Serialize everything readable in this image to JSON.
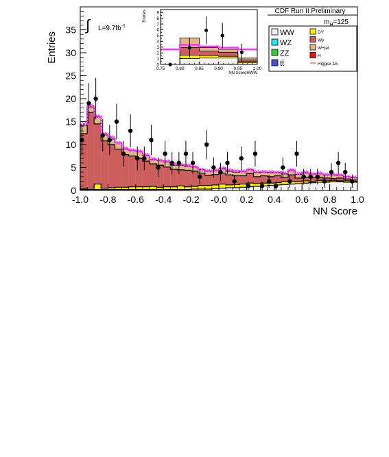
{
  "header": {
    "title": "CDF Run II Preliminary",
    "lumi_prefix": "L=9.7fb",
    "lumi_sup": "-1",
    "mass_label": "m",
    "mass_sub": "H",
    "mass_value": "=125"
  },
  "legend": {
    "items": [
      {
        "label": "WW",
        "color": "#f4f4f4"
      },
      {
        "label": "WZ",
        "color": "#22e8ee"
      },
      {
        "label": "ZZ",
        "color": "#33cc33"
      },
      {
        "label": "tt̄",
        "color": "#4a4ad8"
      },
      {
        "label": "DY",
        "color": "#ffee00"
      },
      {
        "label": "Wγ",
        "color": "#cc5e5e"
      },
      {
        "label": "W+jet",
        "color": "#dfb888"
      },
      {
        "label": "H",
        "color": "#ee1111"
      },
      {
        "label": "Higgsx 15",
        "color": "#ff3333"
      }
    ]
  },
  "colors": {
    "ww": "#f4f4f4",
    "wz": "#22e8ee",
    "zz": "#33cc33",
    "tt": "#4a4ad8",
    "dy": "#ffee00",
    "wgamma": "#cc5e5e",
    "wjet": "#dfb888",
    "higgs": "#ee1111",
    "signal_line": "#ff3333",
    "band": "#ff33ff"
  },
  "chart_data": [
    {
      "type": "bar",
      "title": "",
      "xlabel": "NN Score",
      "ylabel": "Entries",
      "xlim": [
        -1.0,
        1.0
      ],
      "ylim": [
        0,
        40
      ],
      "xticks": [
        -1.0,
        -0.8,
        -0.6,
        -0.4,
        -0.2,
        0.0,
        0.2,
        0.4,
        0.6,
        0.8,
        1.0
      ],
      "xtick_labels": [
        "-1.0",
        "-0.8",
        "-0.6",
        "-0.4",
        "-0.2",
        "-0.0",
        "0.2",
        "0.4",
        "0.6",
        "0.8",
        "1.0"
      ],
      "yticks": [
        0,
        5,
        10,
        15,
        20,
        25,
        30,
        35
      ],
      "bin_edges": [
        -1.0,
        -0.95,
        -0.9,
        -0.85,
        -0.8,
        -0.75,
        -0.7,
        -0.65,
        -0.6,
        -0.55,
        -0.5,
        -0.45,
        -0.4,
        -0.35,
        -0.3,
        -0.25,
        -0.2,
        -0.15,
        -0.1,
        -0.05,
        0.0,
        0.05,
        0.1,
        0.15,
        0.2,
        0.25,
        0.3,
        0.35,
        0.4,
        0.45,
        0.5,
        0.55,
        0.6,
        0.65,
        0.7,
        0.75,
        0.8,
        0.85,
        0.9,
        0.95,
        1.0
      ],
      "stack_order": [
        "WW",
        "DY",
        "Wγ",
        "W+jet"
      ],
      "series": [
        {
          "name": "WW",
          "values": [
            0.2,
            0.2,
            0.2,
            0.2,
            0.2,
            0.2,
            0.2,
            0.2,
            0.2,
            0.2,
            0.2,
            0.2,
            0.2,
            0.2,
            0.2,
            0.2,
            0.3,
            0.3,
            0.3,
            0.4,
            0.5,
            0.6,
            0.6,
            0.7,
            0.8,
            0.9,
            1.0,
            1.1,
            1.2,
            1.3,
            1.4,
            1.5,
            1.6,
            1.7,
            1.8,
            1.8,
            1.9,
            1.9,
            1.8,
            1.8
          ]
        },
        {
          "name": "DY",
          "values": [
            0.2,
            0.3,
            1.2,
            0.3,
            0.4,
            0.5,
            0.5,
            0.6,
            0.6,
            0.6,
            0.7,
            0.5,
            0.6,
            0.6,
            0.8,
            0.6,
            0.6,
            0.8,
            0.8,
            0.8,
            0.9,
            0.6,
            0.7,
            0.7,
            0.8,
            0.6,
            0.6,
            0.5,
            0.5,
            0.6,
            0.6,
            0.4,
            0.5,
            0.3,
            0.4,
            0.3,
            0.3,
            0.2,
            0.3,
            0.2
          ]
        },
        {
          "name": "Wγ",
          "values": [
            12.0,
            16.5,
            13.1,
            10.3,
            9.4,
            8.3,
            7.1,
            6.7,
            6.2,
            5.6,
            4.9,
            4.8,
            4.3,
            3.8,
            3.5,
            3.6,
            3.3,
            2.7,
            2.2,
            2.3,
            2.4,
            2.2,
            1.9,
            1.8,
            2.1,
            1.5,
            1.6,
            1.4,
            1.5,
            0.9,
            1.4,
            0.8,
            0.7,
            0.8,
            0.6,
            0.6,
            0.4,
            0.6,
            0.4,
            0.3
          ]
        },
        {
          "name": "W+jet",
          "values": [
            1.8,
            1.2,
            1.5,
            1.3,
            1.2,
            1.4,
            1.2,
            1.2,
            1.5,
            1.2,
            0.9,
            1.0,
            1.1,
            0.9,
            1.0,
            0.9,
            0.9,
            0.8,
            0.9,
            0.8,
            0.9,
            0.8,
            0.8,
            0.9,
            0.8,
            0.9,
            0.8,
            0.9,
            0.7,
            0.8,
            0.9,
            0.8,
            1.0,
            0.8,
            0.9,
            0.7,
            0.8,
            0.6,
            0.5,
            0.5
          ]
        }
      ],
      "band_total": [
        14.5,
        18.5,
        16.2,
        12.4,
        11.6,
        10.4,
        9.2,
        8.8,
        8.6,
        7.8,
        6.9,
        6.6,
        6.4,
        5.8,
        5.7,
        5.5,
        5.2,
        4.6,
        4.3,
        4.4,
        4.9,
        4.5,
        4.3,
        4.2,
        4.6,
        4.1,
        4.1,
        4.1,
        4.0,
        3.8,
        4.5,
        3.7,
        4.0,
        3.6,
        3.8,
        3.5,
        3.5,
        3.4,
        3.0,
        2.9
      ],
      "data_points": [
        {
          "x": -0.988,
          "y": 11,
          "err": 3.3
        },
        {
          "x": -0.938,
          "y": 19,
          "err": 4.4
        },
        {
          "x": -0.888,
          "y": 20,
          "err": 4.5
        },
        {
          "x": -0.838,
          "y": 12,
          "err": 3.5
        },
        {
          "x": -0.788,
          "y": 11,
          "err": 3.3
        },
        {
          "x": -0.738,
          "y": 15,
          "err": 3.9
        },
        {
          "x": -0.688,
          "y": 8,
          "err": 2.8
        },
        {
          "x": -0.638,
          "y": 13,
          "err": 3.6
        },
        {
          "x": -0.588,
          "y": 7,
          "err": 2.6
        },
        {
          "x": -0.538,
          "y": 7,
          "err": 2.6
        },
        {
          "x": -0.488,
          "y": 11,
          "err": 3.3
        },
        {
          "x": -0.438,
          "y": 5,
          "err": 2.2
        },
        {
          "x": -0.388,
          "y": 8,
          "err": 2.8
        },
        {
          "x": -0.338,
          "y": 6,
          "err": 2.4
        },
        {
          "x": -0.288,
          "y": 6,
          "err": 2.4
        },
        {
          "x": -0.238,
          "y": 8,
          "err": 2.8
        },
        {
          "x": -0.188,
          "y": 6,
          "err": 2.4
        },
        {
          "x": -0.138,
          "y": 3,
          "err": 1.7
        },
        {
          "x": -0.088,
          "y": 10,
          "err": 3.2
        },
        {
          "x": -0.038,
          "y": 5,
          "err": 2.2
        },
        {
          "x": 0.012,
          "y": 4,
          "err": 2.0
        },
        {
          "x": 0.062,
          "y": 6,
          "err": 2.4
        },
        {
          "x": 0.112,
          "y": 2,
          "err": 1.4
        },
        {
          "x": 0.162,
          "y": 7,
          "err": 2.6
        },
        {
          "x": 0.212,
          "y": 1,
          "err": 1.0
        },
        {
          "x": 0.262,
          "y": 8,
          "err": 2.8
        },
        {
          "x": 0.312,
          "y": 1,
          "err": 1.0
        },
        {
          "x": 0.362,
          "y": 2,
          "err": 1.4
        },
        {
          "x": 0.412,
          "y": 1,
          "err": 1.0
        },
        {
          "x": 0.462,
          "y": 5,
          "err": 2.2
        },
        {
          "x": 0.512,
          "y": 2,
          "err": 1.4
        },
        {
          "x": 0.562,
          "y": 8,
          "err": 2.8
        },
        {
          "x": 0.612,
          "y": 3,
          "err": 1.7
        },
        {
          "x": 0.662,
          "y": 3,
          "err": 1.7
        },
        {
          "x": 0.712,
          "y": 3,
          "err": 1.7
        },
        {
          "x": 0.762,
          "y": 2,
          "err": 1.4
        },
        {
          "x": 0.812,
          "y": 4,
          "err": 2.0
        },
        {
          "x": 0.862,
          "y": 6,
          "err": 2.4
        },
        {
          "x": 0.912,
          "y": 4,
          "err": 2.0
        },
        {
          "x": 0.962,
          "y": 2,
          "err": 1.4
        }
      ]
    },
    {
      "type": "bar",
      "title": "",
      "xlabel": "NN ScoreHWW",
      "ylabel": "Entries",
      "xlim": [
        0.75,
        1.0
      ],
      "ylim": [
        0,
        9.5
      ],
      "xticks": [
        0.75,
        0.8,
        0.85,
        0.9,
        0.95,
        1.0
      ],
      "xtick_labels": [
        "0.75",
        "0.80",
        "0.85",
        "0.90",
        "0.95",
        "1.00"
      ],
      "yticks": [
        0,
        1,
        2,
        3,
        4,
        5,
        6,
        7,
        8,
        9
      ],
      "bin_edges": [
        0.75,
        0.8,
        0.85,
        0.9,
        0.95,
        1.0
      ],
      "stack_order": [
        "WW",
        "DY",
        "Wγ",
        "W+jet"
      ],
      "series": [
        {
          "name": "WW",
          "values": [
            0,
            1.0,
            1.1,
            1.1,
            0.3
          ]
        },
        {
          "name": "DY",
          "values": [
            0,
            0.6,
            0.4,
            0.3,
            0.2
          ]
        },
        {
          "name": "Wγ",
          "values": [
            0,
            1.3,
            0.8,
            0.7,
            0.3
          ]
        },
        {
          "name": "W+jet",
          "values": [
            0,
            1.7,
            0.6,
            0.5,
            0.3
          ]
        }
      ],
      "signal_line": [
        2.6,
        3.4,
        3.1,
        2.9,
        2.6
      ],
      "data_points": [
        {
          "x": 0.775,
          "y": 0,
          "err": 0
        },
        {
          "x": 0.825,
          "y": 2.9,
          "err": 1.7
        },
        {
          "x": 0.868,
          "y": 5.9,
          "err": 2.4
        },
        {
          "x": 0.91,
          "y": 5.0,
          "err": 2.2
        },
        {
          "x": 0.96,
          "y": 2.1,
          "err": 1.5
        }
      ]
    }
  ]
}
